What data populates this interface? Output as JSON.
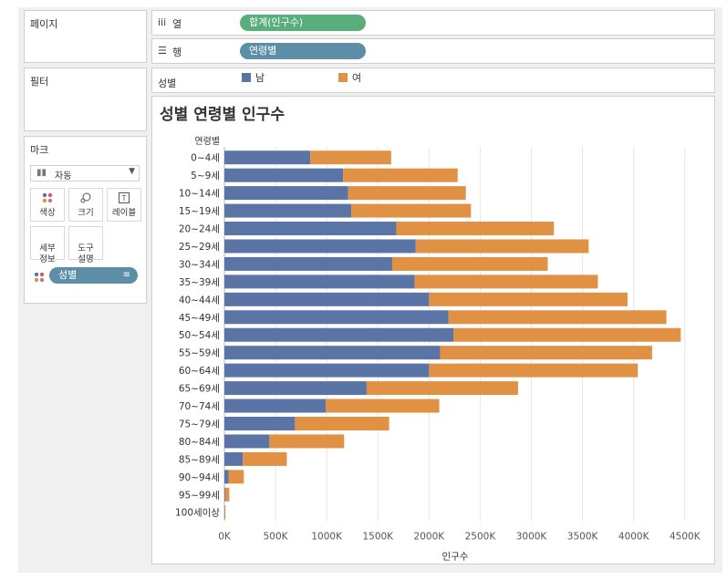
{
  "panes": {
    "pages": "페이지",
    "filters": "필터",
    "marks": {
      "title": "마크",
      "type": "자동",
      "buttons": [
        {
          "label": "색상",
          "icon": "color-dots-icon"
        },
        {
          "label": "크기",
          "icon": "size-icon"
        },
        {
          "label": "레이블",
          "icon": "label-icon"
        },
        {
          "label": "세부\n정보",
          "icon": "detail-icon"
        },
        {
          "label": "도구\n설명",
          "icon": "tooltip-icon"
        }
      ],
      "color_pill": "성별"
    }
  },
  "shelves": {
    "columns_label": "열",
    "columns_pill": "합계(인구수)",
    "rows_label": "행",
    "rows_pill": "연령별"
  },
  "legend": {
    "title": "성별",
    "items": [
      {
        "label": "남",
        "color": "#5b74a6"
      },
      {
        "label": "여",
        "color": "#e09143"
      }
    ]
  },
  "colors": {
    "male": "#5b74a6",
    "female": "#e09143",
    "columns_pill": "#59ae7b",
    "rows_pill": "#5c8ea8"
  },
  "chart_data": {
    "type": "bar",
    "stacked": true,
    "orientation": "horizontal",
    "title": "성별 연령별 인구수",
    "row_header": "연령별",
    "xlabel": "인구수",
    "xlim": [
      0,
      4600000
    ],
    "xticks": [
      0,
      500000,
      1000000,
      1500000,
      2000000,
      2500000,
      3000000,
      3500000,
      4000000,
      4500000
    ],
    "xtick_labels": [
      "0K",
      "500K",
      "1000K",
      "1500K",
      "2000K",
      "2500K",
      "3000K",
      "3500K",
      "4000K",
      "4500K"
    ],
    "categories": [
      "0~4세",
      "5~9세",
      "10~14세",
      "15~19세",
      "20~24세",
      "25~29세",
      "30~34세",
      "35~39세",
      "40~44세",
      "45~49세",
      "50~54세",
      "55~59세",
      "60~64세",
      "65~69세",
      "70~74세",
      "75~79세",
      "80~84세",
      "85~89세",
      "90~94세",
      "95~99세",
      "100세이상"
    ],
    "series": [
      {
        "name": "남",
        "values": [
          840000,
          1160000,
          1210000,
          1240000,
          1680000,
          1870000,
          1640000,
          1860000,
          2000000,
          2190000,
          2240000,
          2110000,
          2000000,
          1390000,
          990000,
          690000,
          440000,
          180000,
          40000,
          8000,
          2000
        ]
      },
      {
        "name": "여",
        "values": [
          790000,
          1120000,
          1150000,
          1170000,
          1540000,
          1690000,
          1520000,
          1790000,
          1940000,
          2130000,
          2220000,
          2070000,
          2040000,
          1480000,
          1110000,
          920000,
          730000,
          430000,
          150000,
          40000,
          8000
        ]
      }
    ],
    "grid": true,
    "legend_position": "top"
  }
}
